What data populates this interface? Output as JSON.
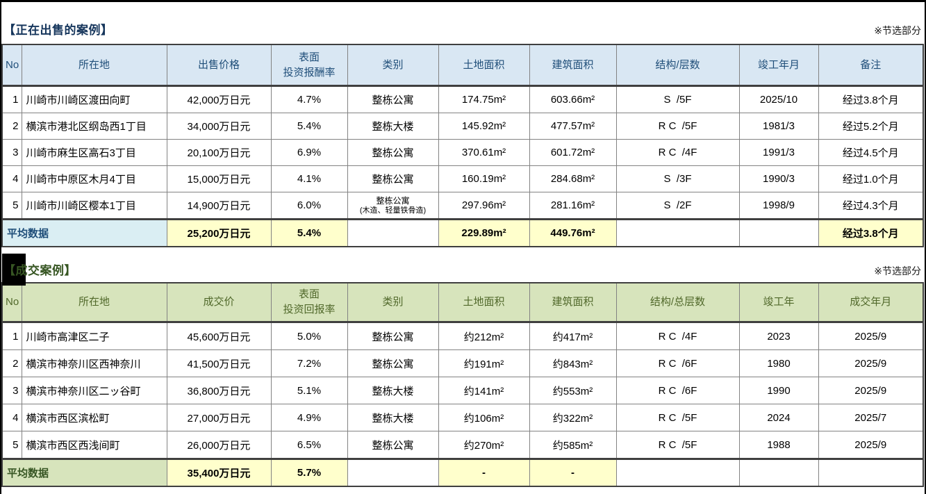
{
  "table1": {
    "title": "【正在出售的案例】",
    "note": "※节选部分",
    "headers": {
      "no": "No",
      "location": "所在地",
      "price": "出售价格",
      "yield1": "表面",
      "yield2": "投资报酬率",
      "category": "类别",
      "land": "土地面积",
      "building": "建筑面积",
      "structure": "结构/层数",
      "completion": "竣工年月",
      "remark": "备注"
    },
    "rows": [
      {
        "no": "1",
        "location": "川崎市川崎区渡田向町",
        "price": "42,000万日元",
        "yield": "4.7%",
        "category": "整栋公寓",
        "category_sub": "",
        "land": "174.75m²",
        "building": "603.66m²",
        "structure": "S  /5F",
        "completion": "2025/10",
        "remark": "经过3.8个月"
      },
      {
        "no": "2",
        "location": "横滨市港北区纲岛西1丁目",
        "price": "34,000万日元",
        "yield": "5.4%",
        "category": "整栋大楼",
        "category_sub": "",
        "land": "145.92m²",
        "building": "477.57m²",
        "structure": "R C  /5F",
        "completion": "1981/3",
        "remark": "经过5.2个月"
      },
      {
        "no": "3",
        "location": "川崎市麻生区高石3丁目",
        "price": "20,100万日元",
        "yield": "6.9%",
        "category": "整栋公寓",
        "category_sub": "",
        "land": "370.61m²",
        "building": "601.72m²",
        "structure": "R C  /4F",
        "completion": "1991/3",
        "remark": "经过4.5个月"
      },
      {
        "no": "4",
        "location": "川崎市中原区木月4丁目",
        "price": "15,000万日元",
        "yield": "4.1%",
        "category": "整栋公寓",
        "category_sub": "",
        "land": "160.19m²",
        "building": "284.68m²",
        "structure": "S  /3F",
        "completion": "1990/3",
        "remark": "经过1.0个月"
      },
      {
        "no": "5",
        "location": "川崎市川崎区樱本1丁目",
        "price": "14,900万日元",
        "yield": "6.0%",
        "category": "整栋公寓",
        "category_sub": "(木造、轻量铁骨造)",
        "land": "297.96m²",
        "building": "281.16m²",
        "structure": "S  /2F",
        "completion": "1998/9",
        "remark": "经过4.3个月"
      }
    ],
    "average": {
      "label": "平均数据",
      "price": "25,200万日元",
      "yield": "5.4%",
      "land": "229.89m²",
      "building": "449.76m²",
      "remark": "经过3.8个月"
    }
  },
  "table2": {
    "title": "【成交案例】",
    "note": "※节选部分",
    "headers": {
      "no": "No",
      "location": "所在地",
      "price": "成交价",
      "yield1": "表面",
      "yield2": "投资回报率",
      "category": "类别",
      "land": "土地面积",
      "building": "建筑面积",
      "structure": "结构/总层数",
      "completion": "竣工年",
      "deal_date": "成交年月"
    },
    "rows": [
      {
        "no": "1",
        "location": "川崎市高津区二子",
        "price": "45,600万日元",
        "yield": "5.0%",
        "category": "整栋公寓",
        "land": "约212m²",
        "building": "约417m²",
        "structure": "R C  /4F",
        "completion": "2023",
        "deal_date": "2025/9"
      },
      {
        "no": "2",
        "location": "横滨市神奈川区西神奈川",
        "price": "41,500万日元",
        "yield": "7.2%",
        "category": "整栋公寓",
        "land": "约191m²",
        "building": "约843m²",
        "structure": "R C  /6F",
        "completion": "1980",
        "deal_date": "2025/9"
      },
      {
        "no": "3",
        "location": "横滨市神奈川区二ッ谷町",
        "price": "36,800万日元",
        "yield": "5.1%",
        "category": "整栋大楼",
        "land": "约141m²",
        "building": "约553m²",
        "structure": "R C  /6F",
        "completion": "1990",
        "deal_date": "2025/9"
      },
      {
        "no": "4",
        "location": "横滨市西区滨松町",
        "price": "27,000万日元",
        "yield": "4.9%",
        "category": "整栋大楼",
        "land": "约106m²",
        "building": "约322m²",
        "structure": "R C  /5F",
        "completion": "2024",
        "deal_date": "2025/7"
      },
      {
        "no": "5",
        "location": "横滨市西区西浅间町",
        "price": "26,000万日元",
        "yield": "6.5%",
        "category": "整栋公寓",
        "land": "约270m²",
        "building": "约585m²",
        "structure": "R C  /5F",
        "completion": "1988",
        "deal_date": "2025/9"
      }
    ],
    "average": {
      "label": "平均数据",
      "price": "35,400万日元",
      "yield": "5.7%",
      "land": "-",
      "building": "-"
    }
  }
}
